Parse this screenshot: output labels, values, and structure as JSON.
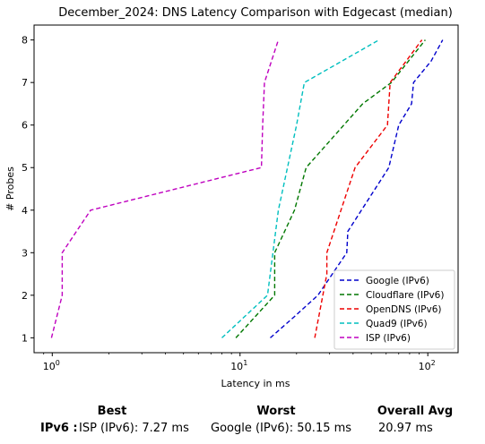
{
  "chart_data": {
    "type": "line",
    "title": "December_2024: DNS Latency Comparison with Edgecast (median)",
    "xlabel": "Latency in ms",
    "ylabel": "# Probes",
    "xscale": "log",
    "xlim": [
      0.8,
      145
    ],
    "ylim": [
      0.65,
      8.35
    ],
    "xticks": [
      {
        "value": 1,
        "label": "10",
        "exp": "0"
      },
      {
        "value": 10,
        "label": "10",
        "exp": "1"
      },
      {
        "value": 100,
        "label": "10",
        "exp": "2"
      }
    ],
    "yticks": [
      1,
      2,
      3,
      4,
      5,
      6,
      7,
      8
    ],
    "grid": false,
    "legend_position": "lower-right",
    "series": [
      {
        "name": "Google (IPv6)",
        "color": "#0000cc",
        "points": [
          [
            14.5,
            1
          ],
          [
            19.5,
            1.5
          ],
          [
            26,
            2
          ],
          [
            37,
            3
          ],
          [
            37.5,
            3.5
          ],
          [
            62,
            5
          ],
          [
            70,
            6
          ],
          [
            82,
            6.5
          ],
          [
            84,
            7
          ],
          [
            104,
            7.5
          ],
          [
            120,
            8
          ]
        ]
      },
      {
        "name": "Cloudflare (IPv6)",
        "color": "#007700",
        "points": [
          [
            9.5,
            1
          ],
          [
            15.3,
            2
          ],
          [
            15.3,
            3
          ],
          [
            19.5,
            4
          ],
          [
            22.5,
            5
          ],
          [
            45,
            6.5
          ],
          [
            64,
            7
          ],
          [
            97,
            8
          ]
        ]
      },
      {
        "name": "OpenDNS (IPv6)",
        "color": "#ee0000",
        "points": [
          [
            25,
            1
          ],
          [
            29,
            2.5
          ],
          [
            29,
            3
          ],
          [
            41,
            5
          ],
          [
            61,
            6
          ],
          [
            63,
            7
          ],
          [
            93,
            8
          ]
        ]
      },
      {
        "name": "Quad9 (IPv6)",
        "color": "#00bfbf",
        "points": [
          [
            8,
            1
          ],
          [
            14,
            2
          ],
          [
            16,
            4
          ],
          [
            20,
            6
          ],
          [
            22,
            7
          ],
          [
            55,
            8
          ]
        ]
      },
      {
        "name": "ISP (IPv6)",
        "color": "#bf00bf",
        "points": [
          [
            0.99,
            1
          ],
          [
            1.13,
            2
          ],
          [
            1.13,
            3
          ],
          [
            1.6,
            4
          ],
          [
            13,
            5
          ],
          [
            13.2,
            6
          ],
          [
            13.5,
            7
          ],
          [
            16,
            8
          ]
        ]
      }
    ]
  },
  "summary": {
    "best_header": "Best",
    "worst_header": "Worst",
    "avg_header": "Overall Avg",
    "row_label": "IPv6 :",
    "best_value": "ISP (IPv6): 7.27 ms",
    "worst_value": "Google (IPv6): 50.15 ms",
    "avg_value": "20.97 ms"
  }
}
